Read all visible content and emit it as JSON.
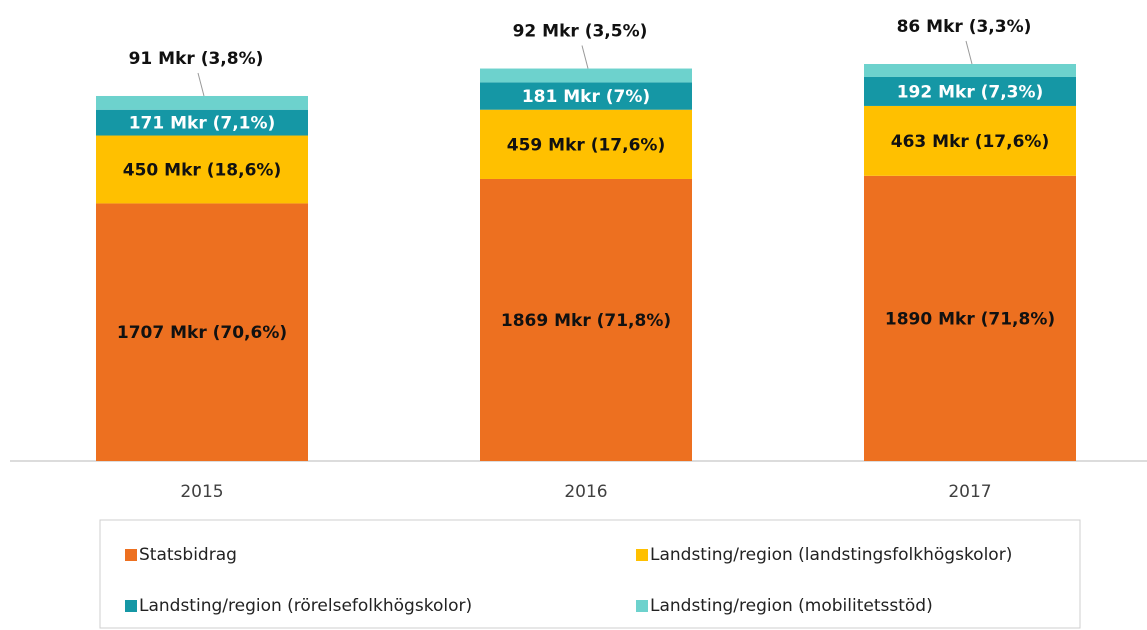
{
  "chart_data": {
    "type": "stacked_bar",
    "categories": [
      "2015",
      "2016",
      "2017"
    ],
    "series": [
      {
        "name": "Statsbidrag",
        "color": "#ED7020",
        "values": [
          1707,
          1869,
          1890
        ],
        "value_labels": [
          "1707 Mkr  (70,6%)",
          "1869 Mkr  (71,8%)",
          "1890 Mkr  (71,8%)"
        ]
      },
      {
        "name": "Landsting/region (landstingsfolkhögskolor)",
        "color": "#FFC000",
        "values": [
          450,
          459,
          463
        ],
        "value_labels": [
          "450 Mkr  (18,6%)",
          "459 Mkr  (17,6%)",
          "463 Mkr  (17,6%)"
        ]
      },
      {
        "name": "Landsting/region (rörelsefolkhögskolor)",
        "color": "#1597A5",
        "values": [
          171,
          181,
          192
        ],
        "value_labels": [
          "171 Mkr  (7,1%)",
          "181 Mkr  (7%)",
          "192 Mkr  (7,3%)"
        ]
      },
      {
        "name": "Landsting/region (mobilitetsstöd)",
        "color": "#6DD2CD",
        "values": [
          91,
          92,
          86
        ],
        "value_labels": [
          "91 Mkr  (3,8%)",
          "92 Mkr  (3,5%)",
          "86 Mkr  (3,3%)"
        ]
      }
    ],
    "legend": "bottom"
  }
}
